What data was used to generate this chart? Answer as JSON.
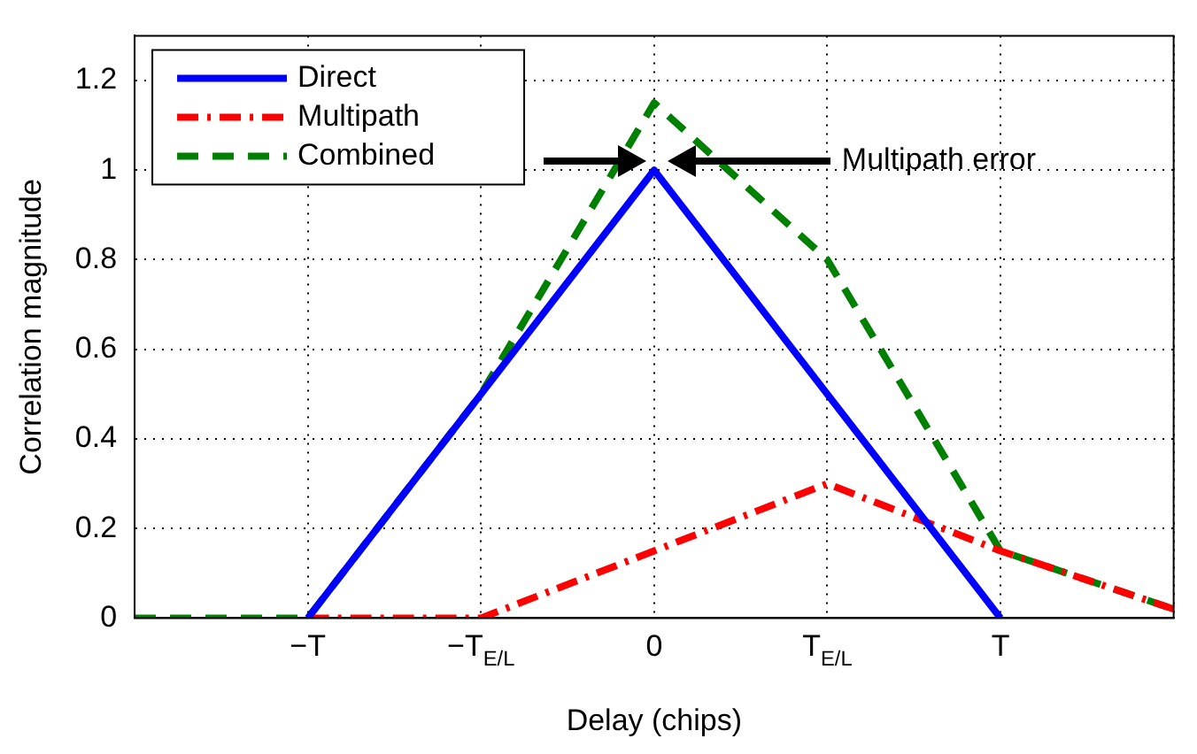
{
  "chart_data": {
    "type": "line",
    "xlabel": "Delay (chips)",
    "ylabel": "Correlation magnitude",
    "categories": [
      null,
      "−T",
      "−T$_{E/L}$",
      "0",
      "T$_{E/L}$",
      "T",
      null
    ],
    "ylim": [
      0,
      1.3
    ],
    "yticks": [
      0,
      0.2,
      0.4,
      0.6,
      0.8,
      1,
      1.2
    ],
    "grid": true,
    "legend": "top left",
    "annotations": [
      "Multipath error"
    ],
    "series": [
      {
        "name": "Direct",
        "color": "#0000ff",
        "line_style": "solid",
        "values": [
          null,
          0,
          0.5,
          1,
          0.5,
          0,
          null
        ]
      },
      {
        "name": "Multipath",
        "color": "#ff0000",
        "line_style": "dashdot",
        "values": [
          null,
          0,
          0,
          0.15,
          0.3,
          0.15,
          0.02
        ]
      },
      {
        "name": "Combined",
        "color": "#008000",
        "line_style": "dashed",
        "values": [
          0,
          0,
          0.5,
          1.15,
          0.8,
          0.15,
          0.02
        ]
      }
    ]
  }
}
